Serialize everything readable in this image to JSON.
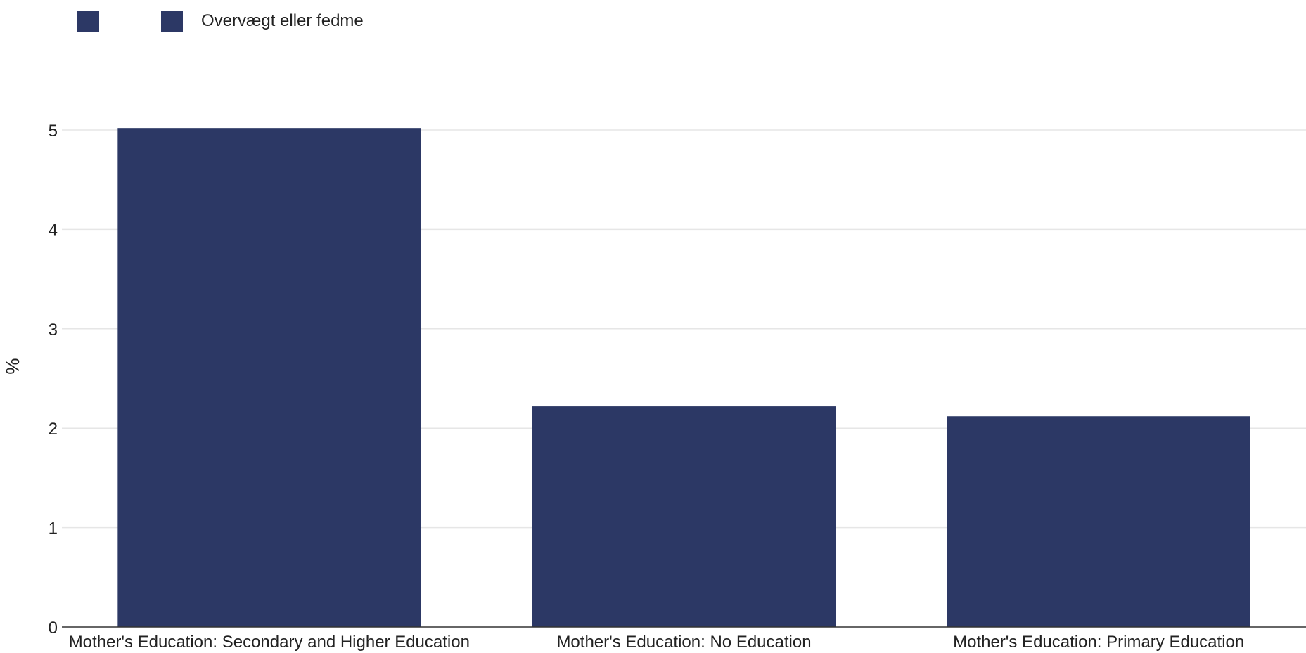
{
  "colors": {
    "bar": "#2c3865",
    "grid": "#e6e6e6",
    "axis": "#333333"
  },
  "legend": {
    "items": [
      {
        "label": "",
        "color": "#2c3865"
      },
      {
        "label": "Overvægt eller fedme",
        "color": "#2c3865"
      }
    ]
  },
  "chart_data": {
    "type": "bar",
    "title": "",
    "xlabel": "",
    "ylabel": "%",
    "categories": [
      "Mother's Education: Secondary and Higher Education",
      "Mother's Education: No Education",
      "Mother's Education: Primary Education"
    ],
    "series": [
      {
        "name": "Overvægt eller fedme",
        "values": [
          5.02,
          2.22,
          2.12
        ]
      }
    ],
    "ylim": [
      0,
      5.5
    ],
    "yticks": [
      0,
      1,
      2,
      3,
      4,
      5
    ],
    "grid": true,
    "legend_position": "top-left"
  }
}
